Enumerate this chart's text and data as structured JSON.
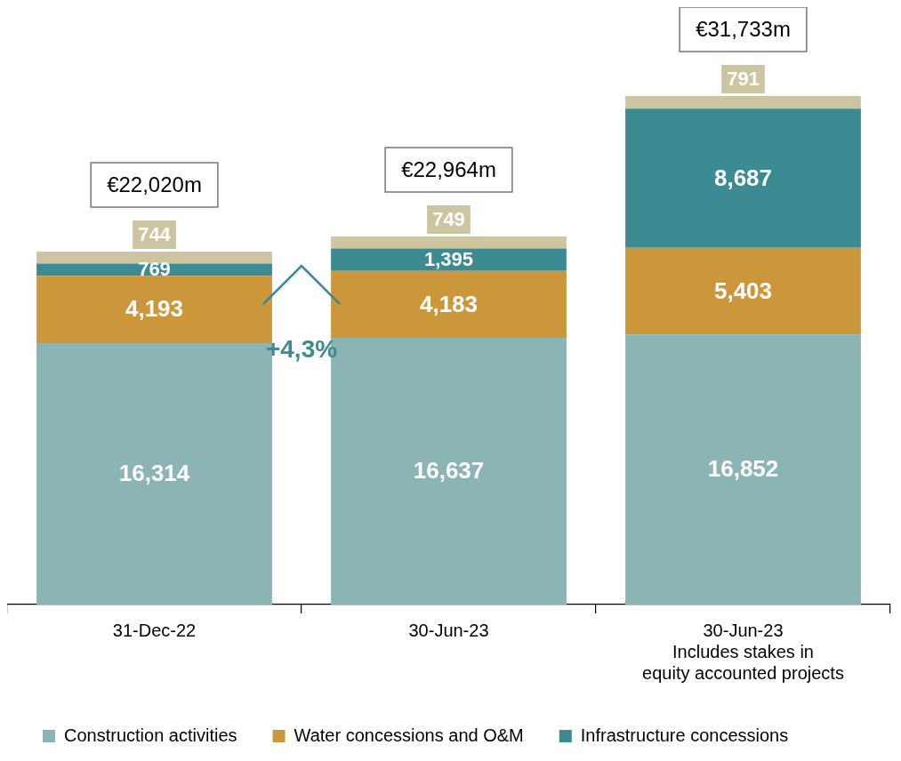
{
  "chart_data": {
    "type": "bar",
    "stacked": true,
    "categories": [
      "31-Dec-22",
      "30-Jun-23",
      "30-Jun-23\nIncludes stakes in\nequity accounted projects"
    ],
    "series": [
      {
        "name": "Construction activities",
        "color": "#8ab5b4",
        "values": [
          16314,
          16637,
          16852
        ],
        "value_labels": [
          "16,314",
          "16,637",
          "16,852"
        ]
      },
      {
        "name": "Water concessions and O&M",
        "color": "#cc973b",
        "values": [
          4193,
          4183,
          5403
        ],
        "value_labels": [
          "4,193",
          "4,183",
          "5,403"
        ]
      },
      {
        "name": "Infrastructure concessions",
        "color": "#3c8a92",
        "values": [
          769,
          1395,
          8687
        ],
        "value_labels": [
          "769",
          "1,395",
          "8,687"
        ]
      },
      {
        "color": "#cdc5a0",
        "values": [
          744,
          749,
          791
        ],
        "value_labels": [
          "744",
          "749",
          "791"
        ]
      }
    ],
    "totals": [
      "€22,020m",
      "€22,964m",
      "€31,733m"
    ],
    "annotations": [
      "+4,3%"
    ],
    "legend": "bottom",
    "grid": false
  }
}
